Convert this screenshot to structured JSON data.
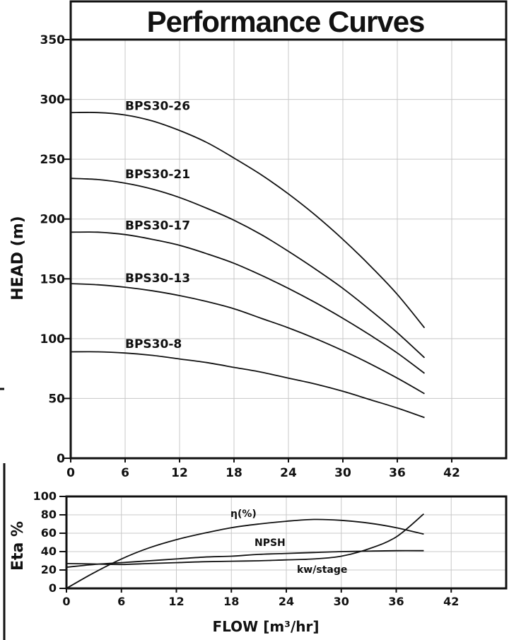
{
  "title": "Performance Curves",
  "chart_data": [
    {
      "type": "line",
      "name": "head",
      "ylabel": "HEAD (m)",
      "xlabel": "",
      "xlim": [
        0,
        48
      ],
      "ylim": [
        0,
        350
      ],
      "xticks": [
        0,
        6,
        12,
        18,
        24,
        30,
        36,
        42
      ],
      "yticks": [
        0,
        50,
        100,
        150,
        200,
        250,
        300,
        350
      ],
      "grid": true,
      "x": [
        0,
        3,
        6,
        9,
        12,
        15,
        18,
        21,
        24,
        27,
        30,
        33,
        36,
        39
      ],
      "series": [
        {
          "name": "BPS30-26",
          "values": [
            289,
            289,
            287,
            282,
            274,
            264,
            251,
            237,
            221,
            203,
            183,
            161,
            137,
            109
          ]
        },
        {
          "name": "BPS30-21",
          "values": [
            234,
            233,
            230,
            225,
            218,
            209,
            199,
            187,
            173,
            158,
            142,
            124,
            105,
            84
          ]
        },
        {
          "name": "BPS30-17",
          "values": [
            189,
            189,
            187,
            183,
            178,
            171,
            163,
            153,
            142,
            130,
            117,
            103,
            88,
            71
          ]
        },
        {
          "name": "BPS30-13",
          "values": [
            146,
            145,
            143,
            140,
            136,
            131,
            125,
            117,
            109,
            100,
            90,
            79,
            67,
            54
          ]
        },
        {
          "name": "BPS30-8",
          "values": [
            89,
            89,
            88,
            86,
            83,
            80,
            76,
            72,
            67,
            62,
            56,
            49,
            42,
            34
          ]
        }
      ]
    },
    {
      "type": "line",
      "name": "efficiency",
      "ylabel": "Eta %",
      "xlabel": "FLOW [m³/hr]",
      "xlim": [
        0,
        48
      ],
      "ylim": [
        0,
        100
      ],
      "xticks": [
        0,
        6,
        12,
        18,
        24,
        30,
        36,
        42
      ],
      "yticks": [
        0,
        20,
        40,
        60,
        80,
        100
      ],
      "grid": true,
      "x": [
        0,
        3,
        6,
        9,
        12,
        15,
        18,
        21,
        24,
        27,
        30,
        33,
        36,
        39
      ],
      "series": [
        {
          "name": "η(%)",
          "values": [
            0,
            17,
            32,
            44,
            53,
            60,
            66,
            70,
            73,
            75,
            74,
            71,
            66,
            59
          ]
        },
        {
          "name": "NPSH",
          "values": [
            27,
            26.5,
            26,
            27,
            28,
            29,
            29.5,
            30,
            31,
            32,
            35,
            43,
            56,
            81
          ]
        },
        {
          "name": "kw/stage",
          "values": [
            23,
            26,
            28,
            30,
            32,
            34,
            35,
            37,
            38,
            39,
            40,
            40.5,
            41,
            41
          ]
        }
      ],
      "annotations": [
        "η(%)",
        "NPSH",
        "kw/stage"
      ]
    }
  ]
}
